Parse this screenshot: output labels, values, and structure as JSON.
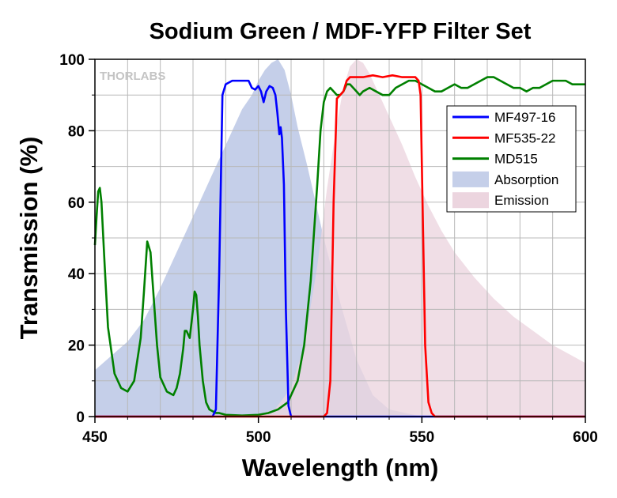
{
  "chart_data": {
    "type": "line",
    "title": "Sodium Green / MDF-YFP Filter Set",
    "xlabel": "Wavelength (nm)",
    "ylabel": "Transmission (%)",
    "xlim": [
      450,
      600
    ],
    "ylim": [
      0,
      100
    ],
    "xticks": [
      450,
      500,
      550,
      600
    ],
    "yticks": [
      0,
      20,
      40,
      60,
      80,
      100
    ],
    "xgrid_step": 10,
    "ygrid_step": 10,
    "grid": true,
    "legend_position": "right",
    "watermark": "THORLABS",
    "series": [
      {
        "name": "MF497-16",
        "kind": "line",
        "color": "#0000ff",
        "x": [
          450,
          486,
          487,
          488,
          489,
          490,
          492,
          494,
          496,
          497,
          498,
          499,
          500,
          500.8,
          501.6,
          502.4,
          503.4,
          504.4,
          505.2,
          505.8,
          506.4,
          506.8,
          507.2,
          507.8,
          508.4,
          509.2,
          510,
          600
        ],
        "y": [
          0,
          0,
          2,
          40,
          90,
          93,
          94,
          94,
          94,
          94,
          92,
          91.5,
          92.5,
          91,
          88,
          91,
          92.5,
          92,
          90,
          85,
          79,
          81,
          78,
          65,
          30,
          3,
          0,
          0
        ]
      },
      {
        "name": "MF535-22",
        "kind": "line",
        "color": "#ff0000",
        "x": [
          450,
          520,
          521,
          522,
          523,
          524,
          525,
          526,
          527,
          528,
          530,
          532,
          535,
          538,
          541,
          544,
          546,
          548,
          549,
          549.6,
          550.2,
          551,
          552,
          553,
          554,
          600
        ],
        "y": [
          0,
          0,
          1,
          10,
          60,
          89,
          90,
          91,
          94,
          95,
          95,
          95,
          95.5,
          95,
          95.5,
          95,
          95,
          95,
          94,
          90,
          60,
          20,
          4,
          1,
          0,
          0
        ]
      },
      {
        "name": "MD515",
        "kind": "line",
        "color": "#008000",
        "x": [
          450,
          450.5,
          451,
          451.5,
          452,
          453,
          454,
          456,
          458,
          460,
          462,
          464,
          465,
          466,
          467,
          468,
          469,
          470,
          472,
          474,
          475,
          476,
          477,
          477.5,
          478,
          479,
          480,
          480.5,
          481,
          481.5,
          482,
          483,
          484,
          485,
          486,
          487,
          488,
          490,
          495,
          500,
          503,
          506,
          509,
          512,
          514,
          516,
          518,
          519,
          520,
          521,
          522,
          523,
          524,
          525,
          526,
          527,
          528,
          529,
          530,
          531,
          532,
          534,
          536,
          538,
          540,
          542,
          544,
          546,
          548,
          550,
          552,
          554,
          556,
          558,
          560,
          562,
          564,
          566,
          568,
          570,
          572,
          574,
          576,
          578,
          580,
          582,
          584,
          586,
          588,
          590,
          592,
          594,
          596,
          598,
          600
        ],
        "y": [
          48,
          56,
          63,
          64,
          60,
          42,
          25,
          12,
          8,
          7,
          10,
          22,
          35,
          49,
          46,
          33,
          20,
          11,
          7,
          6,
          8,
          12,
          19,
          24,
          24,
          22,
          30,
          35,
          34,
          28,
          20,
          10,
          4,
          2,
          1.5,
          1,
          1,
          0.5,
          0.3,
          0.5,
          1,
          2,
          4,
          10,
          20,
          38,
          65,
          80,
          88,
          91,
          92,
          91,
          90,
          90,
          91,
          93,
          93,
          92,
          91,
          90,
          91,
          92,
          91,
          90,
          90,
          92,
          93,
          94,
          94,
          93,
          92,
          91,
          91,
          92,
          93,
          92,
          92,
          93,
          94,
          95,
          95,
          94,
          93,
          92,
          92,
          91,
          92,
          92,
          93,
          94,
          94,
          94,
          93,
          93,
          93
        ]
      },
      {
        "name": "Absorption",
        "kind": "area",
        "color": "#c5cfe9",
        "x": [
          450,
          455,
          460,
          465,
          470,
          475,
          480,
          485,
          490,
          495,
          498,
          500,
          502,
          504,
          506,
          508,
          510,
          512,
          515,
          518,
          520,
          525,
          530,
          535,
          540,
          545,
          550,
          600
        ],
        "y": [
          13,
          17,
          21,
          27,
          36,
          46,
          56,
          66,
          76,
          86,
          90,
          94,
          97,
          99,
          100,
          97,
          90,
          81,
          70,
          58,
          50,
          32,
          16,
          6,
          2,
          1,
          0,
          0
        ]
      },
      {
        "name": "Emission",
        "kind": "area",
        "color": "#ecd5df",
        "x": [
          450,
          495,
          500,
          505,
          510,
          514,
          518,
          521,
          524,
          526,
          528,
          530,
          532,
          534,
          537,
          540,
          544,
          548,
          552,
          556,
          560,
          566,
          572,
          578,
          584,
          590,
          596,
          600
        ],
        "y": [
          0,
          0,
          0.5,
          2,
          8,
          20,
          42,
          64,
          82,
          92,
          98,
          100,
          99,
          96,
          90,
          84,
          76,
          67,
          59,
          52,
          46,
          39,
          33,
          28,
          24,
          20,
          17,
          15
        ]
      }
    ]
  }
}
